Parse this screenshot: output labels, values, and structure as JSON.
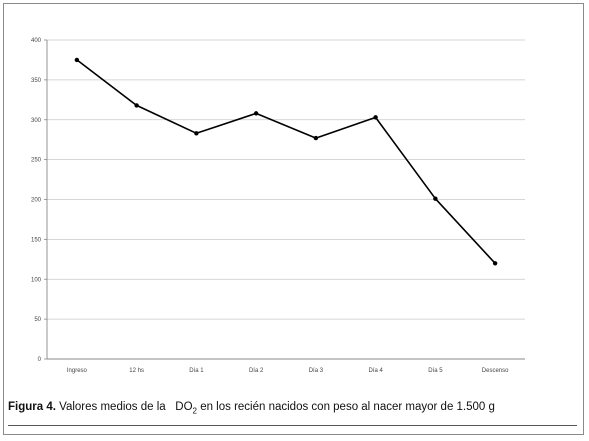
{
  "chart_data": {
    "type": "line",
    "categories": [
      "Ingreso",
      "12 hs",
      "Día 1",
      "Día 2",
      "Día 3",
      "Día 4",
      "Día 5",
      "Descenso"
    ],
    "series": [
      {
        "values": [
          375,
          318,
          283,
          308,
          277,
          303,
          201,
          120
        ]
      }
    ],
    "ylim": [
      0,
      400
    ],
    "yticks": [
      "0",
      "50",
      "100",
      "150",
      "200",
      "250",
      "300",
      "350",
      "400"
    ],
    "grid": true,
    "legend": "none",
    "line_color": "#000000",
    "grid_color": "#c8c8c8"
  },
  "caption": {
    "label": "Figura 4.",
    "text_before": "Valores medios de la",
    "quantity": "DO",
    "subscript": "2",
    "text_after": "en los recién nacidos con peso al nacer mayor de 1.500 g"
  }
}
